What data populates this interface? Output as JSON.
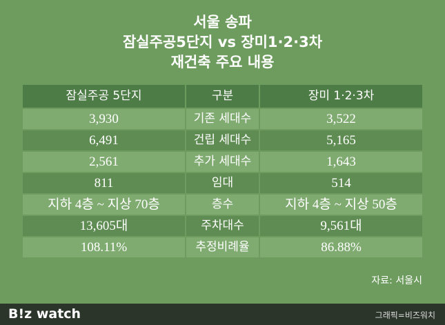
{
  "header": {
    "title_lines": [
      "서울 송파",
      "잠실주공5단지 vs 장미1·2·3차",
      "재건축 주요 내용"
    ]
  },
  "table": {
    "header": [
      "잠실주공 5단지",
      "구분",
      "장미 1·2·3차"
    ],
    "rows": [
      [
        "3,930",
        "기존 세대수",
        "3,522"
      ],
      [
        "6,491",
        "건립 세대수",
        "5,165"
      ],
      [
        "2,561",
        "추가 세대수",
        "1,643"
      ],
      [
        "811",
        "임대",
        "514"
      ],
      [
        "지하 4층 ~ 지상 70층",
        "층수",
        "지하 4층 ~ 지상 50층"
      ],
      [
        "13,605대",
        "주차대수",
        "9,561대"
      ],
      [
        "108.11%",
        "추정비례율",
        "86.88%"
      ]
    ]
  },
  "source": "자료: 서울시",
  "footer": {
    "logo": "B!z watch",
    "credit": "그래픽=비즈워치"
  }
}
